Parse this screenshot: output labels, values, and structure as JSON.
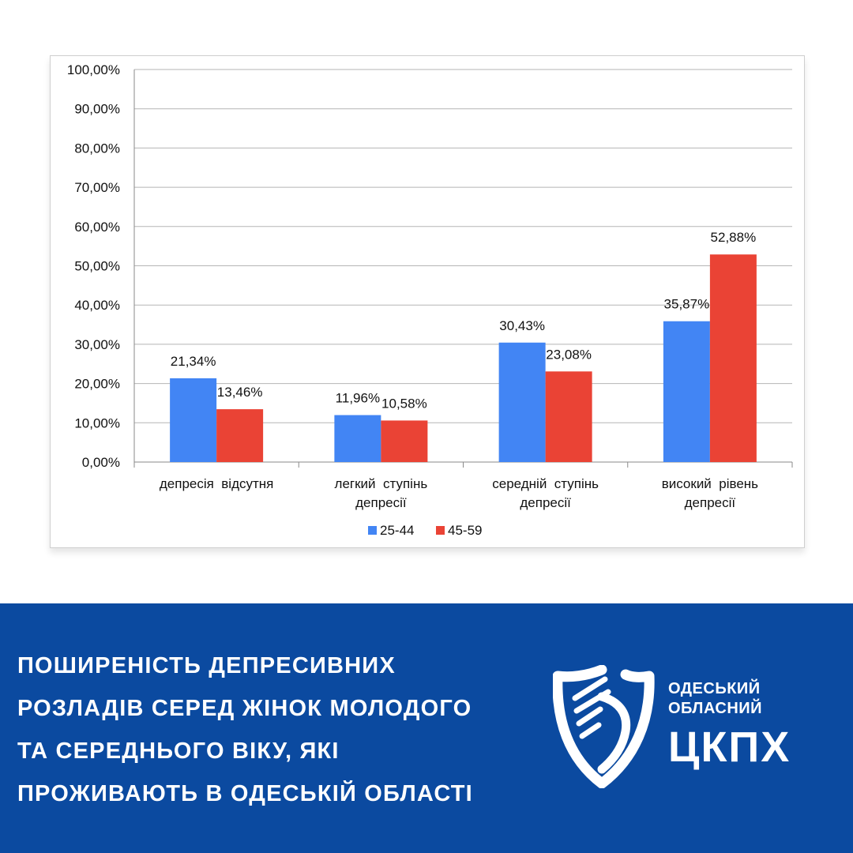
{
  "chart_data": {
    "type": "bar",
    "categories": [
      [
        "депресія  відсутня"
      ],
      [
        "легкий  ступінь",
        "депресії"
      ],
      [
        "середній  ступінь",
        "депресії"
      ],
      [
        "високий  рівень",
        "депресії"
      ]
    ],
    "series": [
      {
        "name": "25-44",
        "color": "#4285f4",
        "values": [
          21.34,
          11.96,
          30.43,
          35.87
        ],
        "labels": [
          "21,34%",
          "11,96%",
          "30,43%",
          "35,87%"
        ]
      },
      {
        "name": "45-59",
        "color": "#ea4335",
        "values": [
          13.46,
          10.58,
          23.08,
          52.88
        ],
        "labels": [
          "13,46%",
          "10,58%",
          "23,08%",
          "52,88%"
        ]
      }
    ],
    "y_ticks": [
      "0,00%",
      "10,00%",
      "20,00%",
      "30,00%",
      "40,00%",
      "50,00%",
      "60,00%",
      "70,00%",
      "80,00%",
      "90,00%",
      "100,00%"
    ],
    "ylim": [
      0,
      100
    ],
    "grid": true,
    "legend": "bottom"
  },
  "footer": {
    "headline_lines": [
      "ПОШИРЕНІСТЬ ДЕПРЕСИВНИХ",
      "РОЗЛАДІВ СЕРЕД ЖІНОК МОЛОДОГО",
      "ТА СЕРЕДНЬОГО ВІКУ, ЯКІ",
      "ПРОЖИВАЮТЬ В ОДЕСЬКІЙ ОБЛАСТІ"
    ],
    "logo": {
      "line1": "ОДЕСЬКИЙ",
      "line2": "ОБЛАСНИЙ",
      "abbr": "ЦКПХ"
    },
    "background_color": "#0b4aa0"
  }
}
